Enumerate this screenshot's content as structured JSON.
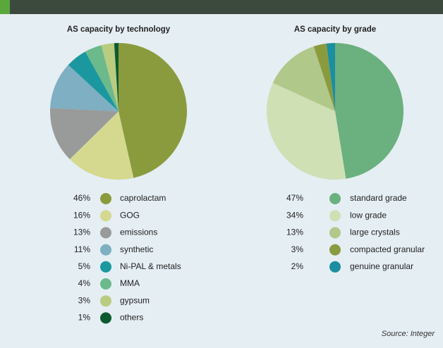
{
  "chart_data": [
    {
      "type": "pie",
      "title": "AS capacity by technology",
      "categories": [
        "caprolactam",
        "GOG",
        "emissions",
        "synthetic",
        "Ni-PAL & metals",
        "MMA",
        "gypsum",
        "others"
      ],
      "values": [
        46,
        16,
        13,
        11,
        5,
        4,
        3,
        1
      ],
      "value_labels": [
        "46%",
        "16%",
        "13%",
        "11%",
        "5%",
        "4%",
        "3%",
        "1%"
      ],
      "colors": [
        "#8a9b3e",
        "#d5d98f",
        "#999a9a",
        "#7eafc3",
        "#1b97a0",
        "#6cb98b",
        "#b9cc80",
        "#0e5a30"
      ]
    },
    {
      "type": "pie",
      "title": "AS capacity by grade",
      "categories": [
        "standard grade",
        "low grade",
        "large crystals",
        "compacted granular",
        "genuine granular"
      ],
      "values": [
        47,
        34,
        13,
        3,
        2
      ],
      "value_labels": [
        "47%",
        "34%",
        "13%",
        "3%",
        "2%"
      ],
      "colors": [
        "#6bb07f",
        "#cfe0b5",
        "#b0c889",
        "#8a9b3e",
        "#1b8fa0"
      ],
      "source": "Source: Integer"
    }
  ]
}
